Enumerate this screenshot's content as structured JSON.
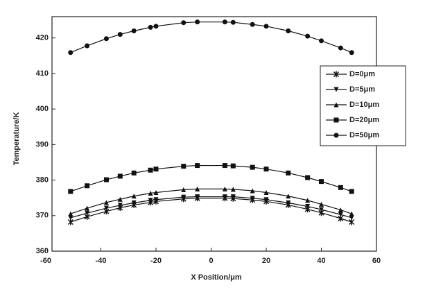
{
  "chart_data": {
    "type": "line",
    "x_label": "X Position/μm",
    "y_label": "Temperature/K",
    "x": [
      -51,
      -45,
      -38,
      -33,
      -28,
      -22,
      -20,
      -10,
      -5,
      5,
      8,
      15,
      20,
      28,
      35,
      40,
      47,
      51
    ],
    "series": [
      {
        "name": "D=0μm",
        "color": "#111111",
        "marker": "star",
        "values": [
          368.2,
          369.7,
          371.2,
          372.2,
          373.0,
          373.7,
          374.0,
          374.7,
          374.9,
          374.9,
          374.8,
          374.4,
          374.0,
          373.0,
          371.8,
          370.8,
          369.2,
          368.2
        ]
      },
      {
        "name": "D=5μm",
        "color": "#111111",
        "marker": "triangle-down",
        "values": [
          369.4,
          370.7,
          372.1,
          372.9,
          373.6,
          374.3,
          374.5,
          375.2,
          375.3,
          375.3,
          375.3,
          374.9,
          374.5,
          373.6,
          372.6,
          371.7,
          370.3,
          369.4
        ]
      },
      {
        "name": "D=10μm",
        "color": "#111111",
        "marker": "triangle-up",
        "values": [
          370.5,
          372.1,
          373.7,
          374.6,
          375.5,
          376.3,
          376.5,
          377.3,
          377.5,
          377.5,
          377.4,
          377.0,
          376.5,
          375.5,
          374.3,
          373.2,
          371.6,
          370.5
        ]
      },
      {
        "name": "D=20μm",
        "color": "#111111",
        "marker": "square",
        "values": [
          376.8,
          378.4,
          380.1,
          381.1,
          382.0,
          382.8,
          383.1,
          383.9,
          384.1,
          384.1,
          384.0,
          383.6,
          383.1,
          382.0,
          380.7,
          379.6,
          377.9,
          376.8
        ]
      },
      {
        "name": "D=50μm",
        "color": "#111111",
        "marker": "circle",
        "values": [
          415.9,
          417.8,
          419.8,
          421.0,
          422.0,
          423.0,
          423.3,
          424.3,
          424.5,
          424.5,
          424.4,
          423.8,
          423.3,
          422.0,
          420.5,
          419.2,
          417.2,
          415.9
        ]
      }
    ],
    "xlim": [
      -60,
      60
    ],
    "xticks": [
      -60,
      -40,
      -20,
      0,
      20,
      40,
      60
    ],
    "ylim": [
      360,
      426
    ],
    "yticks": [
      360,
      370,
      380,
      390,
      400,
      410,
      420
    ],
    "legend": "upper right"
  }
}
